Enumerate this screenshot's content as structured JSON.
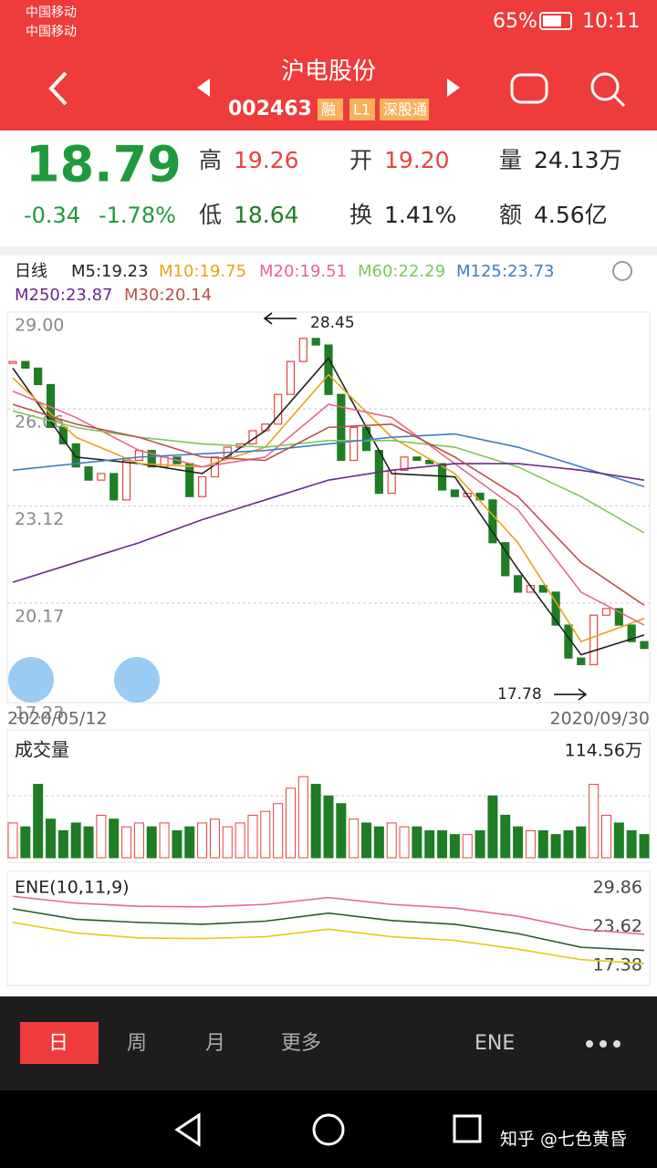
{
  "status": {
    "carrier1": "中国移动",
    "carrier2": "中国移动",
    "battery": "65%",
    "time": "10:11"
  },
  "header": {
    "title": "沪电股份",
    "code": "002463",
    "tags": [
      "融",
      "L1",
      "深股通"
    ]
  },
  "quote": {
    "price": "18.79",
    "change": "-0.34",
    "pct": "-1.78%",
    "fields": [
      {
        "label": "高",
        "value": "19.26"
      },
      {
        "label": "开",
        "value": "19.20"
      },
      {
        "label": "量",
        "value": "24.13万"
      },
      {
        "label": "低",
        "value": "18.64"
      },
      {
        "label": "换",
        "value": "1.41%"
      },
      {
        "label": "额",
        "value": "4.56亿"
      }
    ]
  },
  "legend": {
    "period": "日线",
    "items": [
      "M5:19.23",
      "M10:19.75",
      "M20:19.51",
      "M60:22.29",
      "M125:23.73",
      "M250:23.87",
      "M30:20.14"
    ]
  },
  "chart_data": {
    "type": "candlestick",
    "ylim": [
      17.23,
      29.0
    ],
    "yticks": [
      {
        "value": 29.0,
        "label": "29.00"
      },
      26.06,
      23.12,
      20.17,
      17.23
    ],
    "grid": true,
    "x_start": "2020/05/12",
    "x_end": "2020/09/30",
    "high_label": "28.45",
    "low_label": "17.78",
    "close": [
      27.5,
      27.3,
      26.8,
      25.5,
      25.0,
      24.3,
      23.9,
      24.1,
      23.3,
      24.5,
      24.8,
      24.3,
      24.6,
      24.4,
      23.4,
      24.0,
      24.6,
      24.9,
      25.0,
      25.4,
      25.6,
      26.5,
      27.5,
      28.2,
      28.0,
      26.5,
      24.5,
      25.5,
      24.8,
      23.5,
      24.2,
      24.6,
      24.5,
      24.4,
      23.6,
      23.4,
      23.5,
      23.3,
      22.0,
      21.0,
      20.5,
      20.7,
      20.5,
      19.5,
      18.5,
      18.3,
      19.8,
      20.0,
      19.5,
      19.0,
      18.79
    ],
    "ma_x": [
      0,
      5,
      10,
      15,
      20,
      25,
      30,
      35,
      40,
      45,
      50
    ],
    "ma_series": [
      {
        "name": "M5",
        "color": "#222222",
        "values": [
          27.3,
          24.6,
          24.4,
          24.1,
          25.4,
          27.6,
          24.1,
          24.0,
          21.2,
          18.6,
          19.2
        ]
      },
      {
        "name": "M10",
        "color": "#e8a317",
        "values": [
          27.0,
          25.2,
          24.4,
          24.3,
          24.9,
          27.1,
          25.2,
          24.1,
          22.0,
          19.0,
          19.7
        ]
      },
      {
        "name": "M20",
        "color": "#e6678a",
        "values": [
          26.6,
          25.8,
          24.8,
          24.3,
          24.6,
          26.2,
          25.8,
          24.4,
          23.0,
          20.5,
          19.5
        ]
      },
      {
        "name": "M60",
        "color": "#7cc85a",
        "values": [
          26.0,
          25.5,
          25.2,
          25.0,
          24.9,
          25.1,
          25.1,
          24.9,
          24.3,
          23.4,
          22.3
        ]
      },
      {
        "name": "M125",
        "color": "#3d7fc2",
        "values": [
          24.2,
          24.4,
          24.6,
          24.7,
          24.8,
          25.0,
          25.2,
          25.3,
          24.9,
          24.3,
          23.7
        ]
      },
      {
        "name": "M250",
        "color": "#6a2a8a",
        "values": [
          20.8,
          21.4,
          22.0,
          22.7,
          23.3,
          23.9,
          24.2,
          24.4,
          24.4,
          24.2,
          23.9
        ]
      },
      {
        "name": "M30",
        "color": "#b5534a",
        "values": [
          26.2,
          25.6,
          25.2,
          24.6,
          24.5,
          25.5,
          25.6,
          24.6,
          23.4,
          21.4,
          20.1
        ]
      }
    ]
  },
  "volume": {
    "title": "成交量",
    "max_label": "114.56万",
    "ylim": [
      0,
      114.56
    ],
    "values": [
      45,
      40,
      95,
      50,
      35,
      45,
      40,
      55,
      50,
      40,
      45,
      40,
      45,
      35,
      40,
      45,
      50,
      40,
      45,
      55,
      60,
      70,
      90,
      105,
      95,
      80,
      70,
      50,
      45,
      40,
      45,
      40,
      40,
      35,
      35,
      30,
      30,
      35,
      80,
      55,
      40,
      35,
      35,
      30,
      35,
      40,
      95,
      55,
      45,
      35,
      30
    ]
  },
  "ene": {
    "title": "ENE(10,11,9)",
    "ylim": [
      17.38,
      29.86
    ],
    "yticks": [
      29.86,
      23.62,
      17.38
    ],
    "upper": [
      28.5,
      27.4,
      26.9,
      26.8,
      27.2,
      28.3,
      27.2,
      26.6,
      25.3,
      23.2,
      22.4
    ],
    "mid": [
      26.5,
      24.8,
      24.3,
      24.0,
      24.5,
      25.8,
      24.6,
      24.0,
      22.5,
      20.3,
      19.8
    ],
    "lower": [
      24.3,
      22.6,
      21.8,
      21.7,
      22.0,
      23.2,
      22.0,
      21.4,
      20.0,
      18.3,
      17.7
    ]
  },
  "tabs": {
    "items": [
      "日",
      "周",
      "月",
      "更多"
    ],
    "indicator": "ENE"
  },
  "watermark": "知乎 @七色黄昏"
}
